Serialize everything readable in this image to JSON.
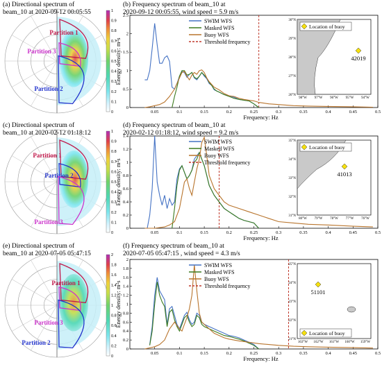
{
  "panels": [
    {
      "polar": {
        "title_line1": "(a) Directional spectrum of",
        "title_line2": "beam_10 at 2020-09-12 00:05:55",
        "partitions": [
          {
            "label": "Partition 1",
            "color": "#c0184a"
          },
          {
            "label": "Partition 3",
            "color": "#cc33cc"
          },
          {
            "label": "Partition 2",
            "color": "#2233cc"
          }
        ],
        "colorbar": {
          "ticks": [
            "0",
            "0.1",
            "0.2",
            "0.3",
            "0.4",
            "0.5",
            "0.6",
            "0.7",
            "0.8",
            "0.9",
            "1"
          ]
        }
      },
      "map": {
        "legend": "Location of buoy",
        "buoy_id": "42019",
        "lat_ticks": [
          "26°N",
          "27°N",
          "28°N",
          "29°N",
          "30°N"
        ],
        "lon_ticks": [
          "98°W",
          "97°W",
          "96°W",
          "95°W",
          "94°W"
        ]
      }
    },
    {
      "polar": {
        "title_line1": "(c) Directional spectrum of",
        "title_line2": "beam_10 at 2020-02-12 01:18:12",
        "partitions": [
          {
            "label": "Partition 1",
            "color": "#c0184a"
          },
          {
            "label": "Partition 2",
            "color": "#2233cc"
          },
          {
            "label": "Partition 3",
            "color": "#cc33cc"
          }
        ],
        "colorbar": {
          "ticks": [
            "0",
            "0.1",
            "0.2",
            "0.3",
            "0.4",
            "0.5",
            "0.6",
            "0.7",
            "0.8",
            "0.9",
            "1"
          ]
        }
      },
      "map": {
        "legend": "Location of buoy",
        "buoy_id": "41013",
        "lat_ticks": [
          "31°N",
          "32°N",
          "33°N",
          "34°N",
          "35°N"
        ],
        "lon_ticks": [
          "80°W",
          "79°W",
          "78°W",
          "77°W",
          "76°W"
        ]
      }
    },
    {
      "polar": {
        "title_line1": "(e) Directional spectrum of",
        "title_line2": "beam_10 at 2020-07-05 05:47:15",
        "partitions": [
          {
            "label": "Partition 1",
            "color": "#c0184a"
          },
          {
            "label": "Partition 3",
            "color": "#cc33cc"
          },
          {
            "label": "Partition 2",
            "color": "#2233cc"
          }
        ],
        "colorbar": {
          "ticks": [
            "0",
            "0.2",
            "0.4",
            "0.6",
            "0.8",
            "1",
            "1.2",
            "1.4",
            "1.6",
            "1.8",
            "2"
          ]
        }
      },
      "map": {
        "legend": "Location of buoy",
        "buoy_id": "51101",
        "lat_ticks": [
          "21°N",
          "22°N",
          "23°N",
          "24°N",
          "25°N"
        ],
        "lon_ticks": [
          "163°W",
          "162°W",
          "161°W",
          "160°W",
          "159°W"
        ]
      }
    }
  ],
  "chart_data": [
    {
      "type": "line",
      "title": "(b) Frequency spectrum of beam_10 at",
      "subtitle": "2020-09-12 00:05:55,  wind speed = 5.9 m/s",
      "xlabel": "Frequency: Hz",
      "ylabel": "Energy density: m²s",
      "xlim": [
        0,
        0.5
      ],
      "ylim": [
        0,
        2.5
      ],
      "xticks": [
        0.05,
        0.1,
        0.15,
        0.2,
        0.25,
        0.3,
        0.35,
        0.4,
        0.45,
        0.5
      ],
      "yticks": [
        0,
        0.5,
        1,
        1.5,
        2,
        2.5
      ],
      "legend_position": "upper-middle",
      "threshold": 0.26,
      "series": [
        {
          "name": "SWIM WFS",
          "color": "#4472c4",
          "x": [
            0.03,
            0.035,
            0.04,
            0.045,
            0.05,
            0.055,
            0.06,
            0.065,
            0.07,
            0.075,
            0.08,
            0.085,
            0.09,
            0.095,
            0.1,
            0.105,
            0.11,
            0.115,
            0.12,
            0.125,
            0.13,
            0.135,
            0.14,
            0.145,
            0.15,
            0.155,
            0.16,
            0.165,
            0.17,
            0.175,
            0.18,
            0.19,
            0.2,
            0.21,
            0.22,
            0.23,
            0.24,
            0.25,
            0.26
          ],
          "y": [
            0.75,
            0.75,
            1.0,
            1.6,
            2.28,
            1.7,
            1.2,
            1.2,
            1.35,
            1.4,
            1.25,
            0.55,
            0.5,
            0.65,
            0.85,
            0.98,
            0.95,
            0.82,
            0.9,
            0.95,
            0.8,
            0.75,
            0.85,
            0.95,
            0.85,
            0.78,
            0.65,
            0.6,
            0.48,
            0.45,
            0.42,
            0.35,
            0.32,
            0.28,
            0.22,
            0.2,
            0.18,
            0.1,
            0
          ]
        },
        {
          "name": "Masked WFS",
          "color": "#3b7a1e",
          "x": [
            0.085,
            0.09,
            0.095,
            0.1,
            0.105,
            0.11,
            0.115,
            0.12,
            0.125,
            0.13,
            0.135,
            0.14,
            0.145,
            0.15,
            0.155,
            0.16,
            0.165,
            0.17,
            0.175,
            0.18,
            0.19,
            0.2,
            0.21,
            0.22,
            0.23,
            0.24,
            0.25,
            0.26
          ],
          "y": [
            0,
            0.3,
            0.55,
            0.85,
            1.0,
            1.0,
            0.88,
            0.9,
            0.95,
            0.82,
            0.78,
            0.85,
            0.95,
            0.88,
            0.8,
            0.68,
            0.6,
            0.5,
            0.45,
            0.42,
            0.35,
            0.3,
            0.25,
            0.22,
            0.2,
            0.18,
            0.1,
            0
          ]
        },
        {
          "name": "Buoy WFS",
          "color": "#b8742c",
          "x": [
            0.03,
            0.04,
            0.05,
            0.06,
            0.07,
            0.08,
            0.09,
            0.1,
            0.105,
            0.11,
            0.115,
            0.12,
            0.125,
            0.13,
            0.135,
            0.14,
            0.145,
            0.15,
            0.155,
            0.16,
            0.17,
            0.18,
            0.19,
            0.2,
            0.21,
            0.22,
            0.23,
            0.24,
            0.25,
            0.26,
            0.28,
            0.3,
            0.33,
            0.36,
            0.4,
            0.45,
            0.49
          ],
          "y": [
            0.0,
            0.02,
            0.05,
            0.08,
            0.15,
            0.3,
            0.5,
            0.8,
            0.95,
            0.98,
            0.85,
            0.75,
            0.88,
            0.95,
            0.9,
            1.0,
            1.02,
            0.95,
            0.8,
            0.7,
            0.55,
            0.48,
            0.38,
            0.32,
            0.3,
            0.25,
            0.22,
            0.2,
            0.18,
            0.14,
            0.1,
            0.08,
            0.05,
            0.04,
            0.03,
            0.02,
            0.01
          ]
        }
      ]
    },
    {
      "type": "line",
      "title": "(d) Frequency spectrum of beam_10 at",
      "subtitle": "2020-02-12 01:18:12,  wind speed = 9.2 m/s",
      "xlabel": "Frequency: Hz",
      "ylabel": "Energy density: m²s",
      "xlim": [
        0,
        0.5
      ],
      "ylim": [
        0,
        1.4
      ],
      "xticks": [
        0.05,
        0.1,
        0.15,
        0.2,
        0.25,
        0.3,
        0.35,
        0.4,
        0.45,
        0.5
      ],
      "yticks": [
        0,
        0.2,
        0.4,
        0.6,
        0.8,
        1,
        1.2,
        1.4
      ],
      "legend_position": "upper-middle",
      "threshold": 0.18,
      "series": [
        {
          "name": "SWIM WFS",
          "color": "#4472c4",
          "x": [
            0.035,
            0.04,
            0.045,
            0.05,
            0.055,
            0.06,
            0.065,
            0.07,
            0.075,
            0.08,
            0.085,
            0.09,
            0.095,
            0.1,
            0.105,
            0.11,
            0.115,
            0.12,
            0.125,
            0.13,
            0.135,
            0.14,
            0.145,
            0.15,
            0.155,
            0.16,
            0.17,
            0.18,
            0.19,
            0.2,
            0.21,
            0.22,
            0.23,
            0.24,
            0.25,
            0.26
          ],
          "y": [
            0.0,
            0.2,
            0.6,
            1.4,
            0.7,
            0.5,
            0.35,
            0.5,
            0.3,
            0.45,
            0.35,
            0.4,
            0.75,
            0.9,
            0.95,
            0.85,
            0.75,
            0.8,
            0.88,
            1.05,
            1.1,
            1.15,
            1.05,
            0.95,
            0.8,
            0.65,
            0.5,
            0.4,
            0.3,
            0.25,
            0.2,
            0.15,
            0.12,
            0.1,
            0.08,
            0
          ]
        },
        {
          "name": "Masked WFS",
          "color": "#3b7a1e",
          "x": [
            0.085,
            0.09,
            0.095,
            0.1,
            0.105,
            0.11,
            0.115,
            0.12,
            0.125,
            0.13,
            0.135,
            0.14,
            0.145,
            0.15,
            0.155,
            0.16,
            0.17,
            0.18,
            0.19,
            0.2,
            0.21,
            0.22,
            0.23,
            0.24,
            0.25,
            0.26
          ],
          "y": [
            0,
            0.3,
            0.65,
            0.88,
            0.95,
            0.85,
            0.75,
            0.8,
            0.88,
            1.0,
            1.05,
            1.15,
            1.05,
            0.95,
            0.8,
            0.65,
            0.5,
            0.4,
            0.3,
            0.25,
            0.2,
            0.15,
            0.12,
            0.1,
            0.08,
            0
          ]
        },
        {
          "name": "Buoy WFS",
          "color": "#b8742c",
          "x": [
            0.03,
            0.05,
            0.07,
            0.08,
            0.09,
            0.1,
            0.105,
            0.11,
            0.115,
            0.12,
            0.125,
            0.13,
            0.135,
            0.14,
            0.145,
            0.15,
            0.155,
            0.16,
            0.17,
            0.18,
            0.19,
            0.2,
            0.22,
            0.24,
            0.26,
            0.28,
            0.3,
            0.33,
            0.36,
            0.4,
            0.45,
            0.49
          ],
          "y": [
            0,
            0.0,
            0.02,
            0.05,
            0.1,
            0.3,
            0.5,
            0.7,
            0.75,
            0.6,
            0.5,
            0.7,
            0.9,
            1.05,
            1.3,
            1.38,
            1.1,
            0.8,
            0.6,
            0.5,
            0.4,
            0.35,
            0.3,
            0.25,
            0.2,
            0.15,
            0.1,
            0.08,
            0.06,
            0.05,
            0.03,
            0.02
          ]
        }
      ]
    },
    {
      "type": "line",
      "title": "(f) Frequency spectrum of beam_10 at",
      "subtitle": "2020-07-05 05:47:15 ,  wind speed = 4.3 m/s",
      "xlabel": "Frequency: Hz",
      "ylabel": "Energy density: m²s",
      "xlim": [
        0,
        0.5
      ],
      "ylim": [
        0,
        2
      ],
      "xticks": [
        0.05,
        0.1,
        0.15,
        0.2,
        0.25,
        0.3,
        0.35,
        0.4,
        0.45,
        0.5
      ],
      "yticks": [
        0,
        0.2,
        0.4,
        0.6,
        0.8,
        1,
        1.2,
        1.4,
        1.6,
        1.8,
        2
      ],
      "legend_position": "upper-middle",
      "threshold": 0.32,
      "series": [
        {
          "name": "SWIM WFS",
          "color": "#4472c4",
          "x": [
            0.04,
            0.045,
            0.05,
            0.055,
            0.06,
            0.065,
            0.07,
            0.075,
            0.08,
            0.085,
            0.09,
            0.095,
            0.1,
            0.105,
            0.11,
            0.115,
            0.12,
            0.125,
            0.13,
            0.135,
            0.14,
            0.145,
            0.15,
            0.16,
            0.17,
            0.18,
            0.19,
            0.2,
            0.21,
            0.22,
            0.23,
            0.24,
            0.25,
            0.26
          ],
          "y": [
            0.1,
            0.5,
            1.2,
            1.6,
            1.3,
            1.2,
            1.1,
            0.55,
            0.9,
            0.95,
            0.75,
            0.55,
            0.45,
            0.6,
            0.75,
            0.82,
            0.65,
            0.55,
            0.6,
            0.8,
            0.75,
            0.6,
            0.55,
            0.5,
            0.45,
            0.4,
            0.35,
            0.3,
            0.28,
            0.25,
            0.2,
            0.15,
            0.1,
            0
          ]
        },
        {
          "name": "Masked WFS",
          "color": "#3b7a1e",
          "x": [
            0.04,
            0.045,
            0.05,
            0.055,
            0.06,
            0.065,
            0.07,
            0.075,
            0.08,
            0.085,
            0.09,
            0.095,
            0.1,
            0.105,
            0.11,
            0.115,
            0.12,
            0.125,
            0.13,
            0.135,
            0.14,
            0.145,
            0.15,
            0.16,
            0.17,
            0.18,
            0.19,
            0.2,
            0.21,
            0.22,
            0.23,
            0.24,
            0.25,
            0.26
          ],
          "y": [
            0.08,
            0.4,
            1.0,
            1.5,
            1.2,
            1.05,
            0.95,
            0.5,
            0.82,
            0.88,
            0.65,
            0.5,
            0.4,
            0.55,
            0.7,
            0.75,
            0.6,
            0.5,
            0.55,
            0.75,
            0.7,
            0.55,
            0.5,
            0.45,
            0.4,
            0.35,
            0.3,
            0.28,
            0.25,
            0.22,
            0.18,
            0.13,
            0.08,
            0
          ]
        },
        {
          "name": "Buoy WFS",
          "color": "#b8742c",
          "x": [
            0.03,
            0.05,
            0.06,
            0.07,
            0.08,
            0.09,
            0.1,
            0.105,
            0.11,
            0.115,
            0.12,
            0.125,
            0.13,
            0.135,
            0.14,
            0.145,
            0.15,
            0.16,
            0.17,
            0.18,
            0.19,
            0.2,
            0.22,
            0.24,
            0.26,
            0.28,
            0.3,
            0.33,
            0.36,
            0.4,
            0.45,
            0.49
          ],
          "y": [
            0,
            0.05,
            0.1,
            0.2,
            0.45,
            0.6,
            0.45,
            0.4,
            0.55,
            0.7,
            0.9,
            1.2,
            1.88,
            1.3,
            0.8,
            0.6,
            0.55,
            0.45,
            0.35,
            0.3,
            0.25,
            0.22,
            0.18,
            0.15,
            0.12,
            0.1,
            0.08,
            0.06,
            0.05,
            0.04,
            0.03,
            0.02
          ]
        }
      ]
    }
  ]
}
